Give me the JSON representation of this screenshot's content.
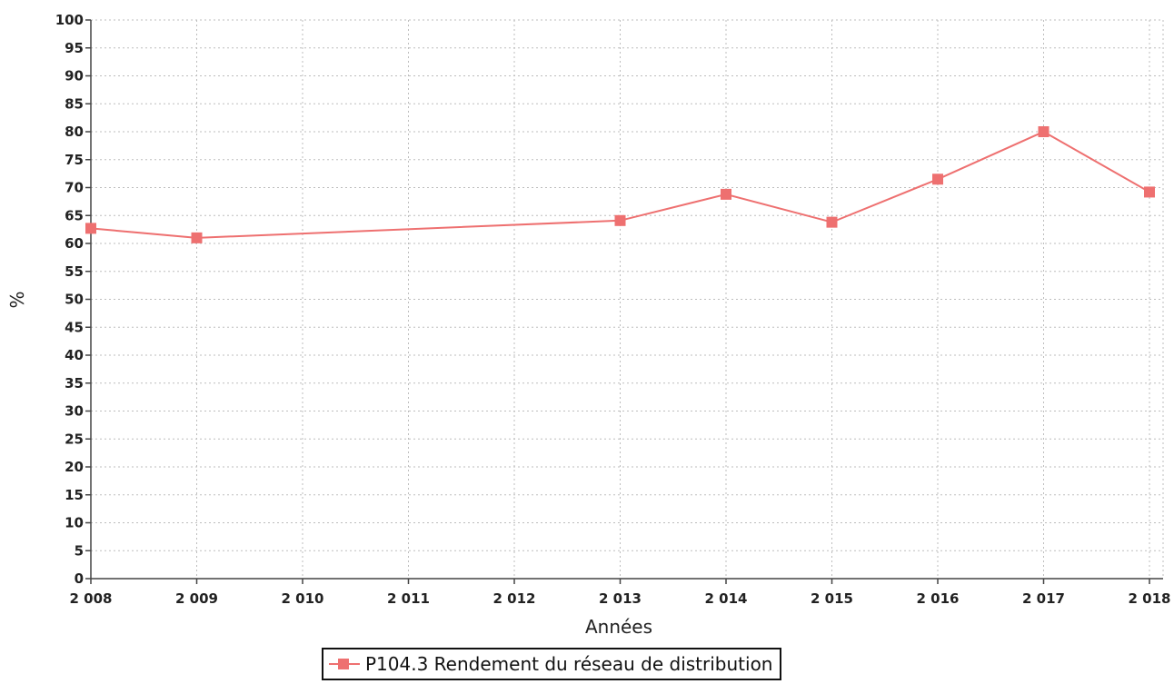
{
  "chart_data": {
    "type": "line",
    "title": "",
    "xlabel": "Années",
    "ylabel": "%",
    "categories": [
      "2 008",
      "2 009",
      "2 010",
      "2 011",
      "2 012",
      "2 013",
      "2 014",
      "2 015",
      "2 016",
      "2 017",
      "2 018"
    ],
    "x": [
      2008,
      2013,
      2014,
      2015,
      2016,
      2017,
      2018
    ],
    "series": [
      {
        "name": "P104.3 Rendement du réseau de distribution",
        "x": [
          2008,
          2009,
          2013,
          2014,
          2015,
          2016,
          2017,
          2018
        ],
        "values": [
          62.7,
          61.0,
          64.1,
          68.8,
          63.8,
          71.5,
          80.0,
          69.2
        ],
        "color": "#ee7070",
        "marker": "square"
      }
    ],
    "ylim": [
      0,
      100
    ],
    "yticks": [
      0,
      5,
      10,
      15,
      20,
      25,
      30,
      35,
      40,
      45,
      50,
      55,
      60,
      65,
      70,
      75,
      80,
      85,
      90,
      95,
      100
    ],
    "xlim": [
      2008,
      2018
    ],
    "grid": true,
    "legend_position": "bottom"
  }
}
